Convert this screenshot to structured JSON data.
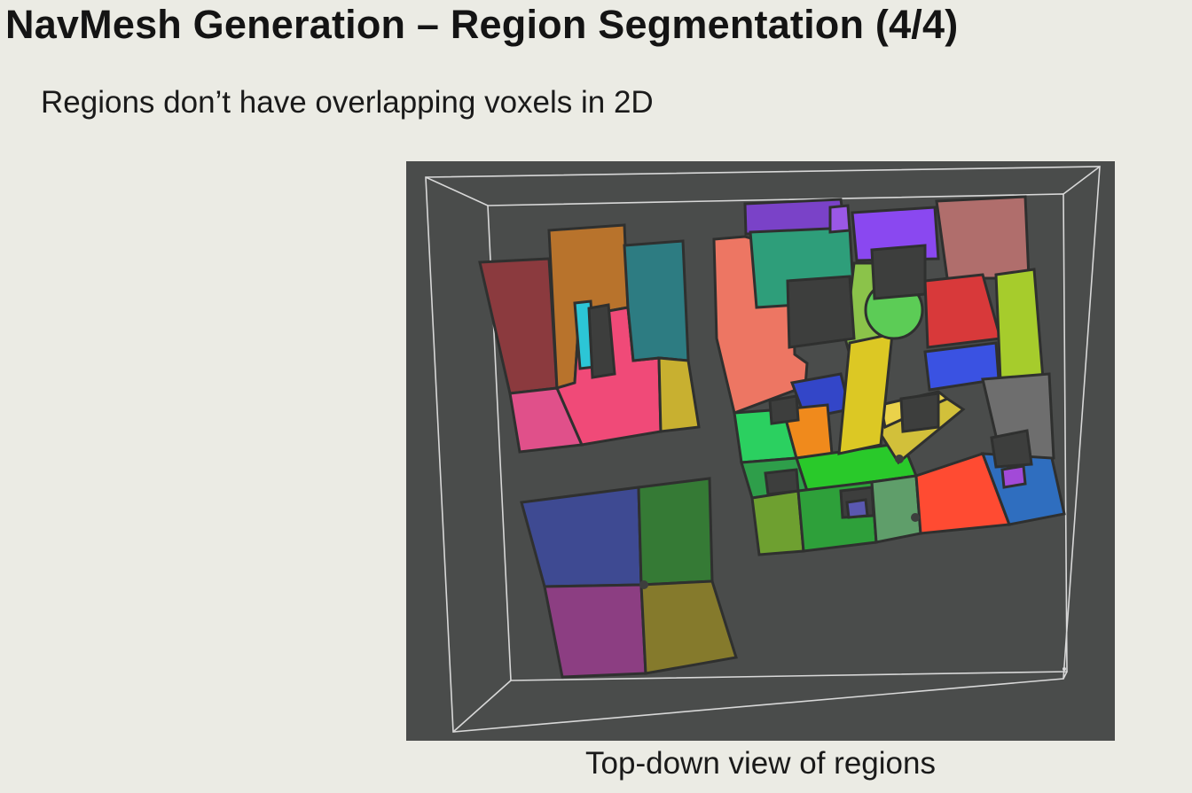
{
  "slide": {
    "title": "NavMesh Generation – Region Segmentation (4/4)",
    "bullet": "Regions don’t have overlapping voxels in 2D",
    "caption": "Top-down view of regions"
  },
  "colors": {
    "background": "#ebebe4",
    "viewport": "#4a4c4b",
    "wireframe": "#d8d8d8",
    "region_outline": "#2f302f"
  }
}
